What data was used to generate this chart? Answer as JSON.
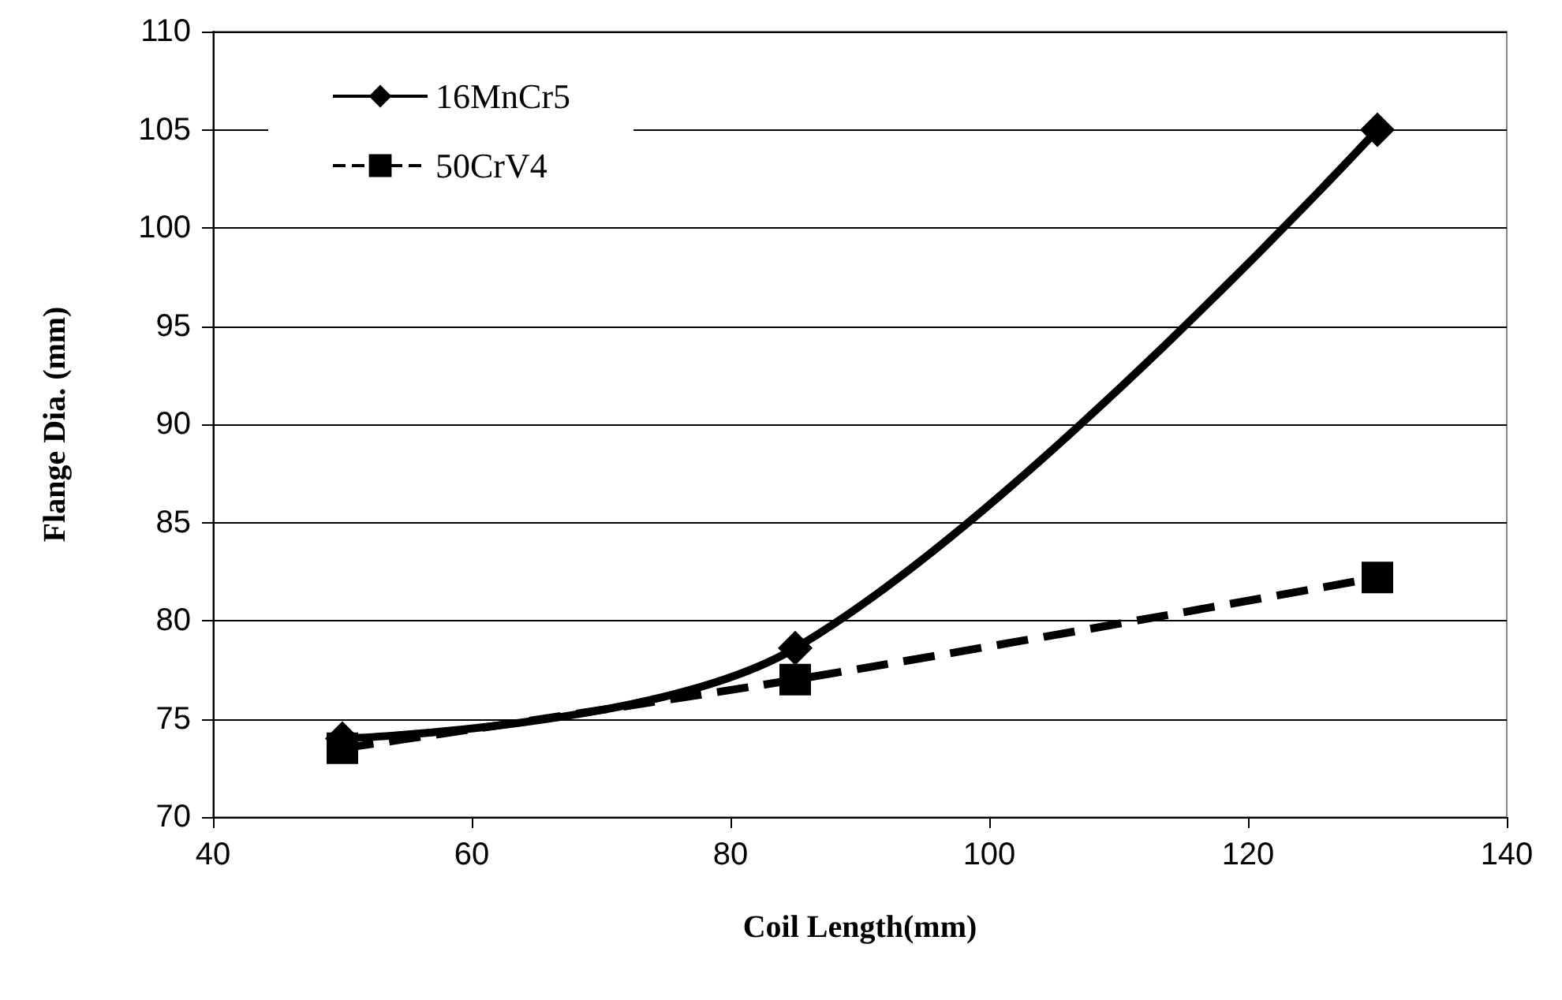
{
  "chart_data": {
    "type": "line",
    "xlabel": "Coil Length(mm)",
    "ylabel": "Flange Dia. (mm)",
    "x": [
      50,
      85,
      130
    ],
    "series": [
      {
        "name": "16MnCr5",
        "color": "#000000",
        "values": [
          74,
          78.6,
          105
        ],
        "marker": "diamond",
        "line_style": "solid"
      },
      {
        "name": "50CrV4",
        "color": "#000000",
        "values": [
          73.5,
          77,
          82.2
        ],
        "marker": "square",
        "line_style": "dashed"
      }
    ],
    "xlim": [
      40,
      140
    ],
    "xticks": [
      40,
      60,
      80,
      100,
      120,
      140
    ],
    "ylim": [
      70,
      110
    ],
    "yticks": [
      70,
      75,
      80,
      85,
      90,
      95,
      100,
      105,
      110
    ],
    "grid": "y",
    "legend": "top left"
  }
}
